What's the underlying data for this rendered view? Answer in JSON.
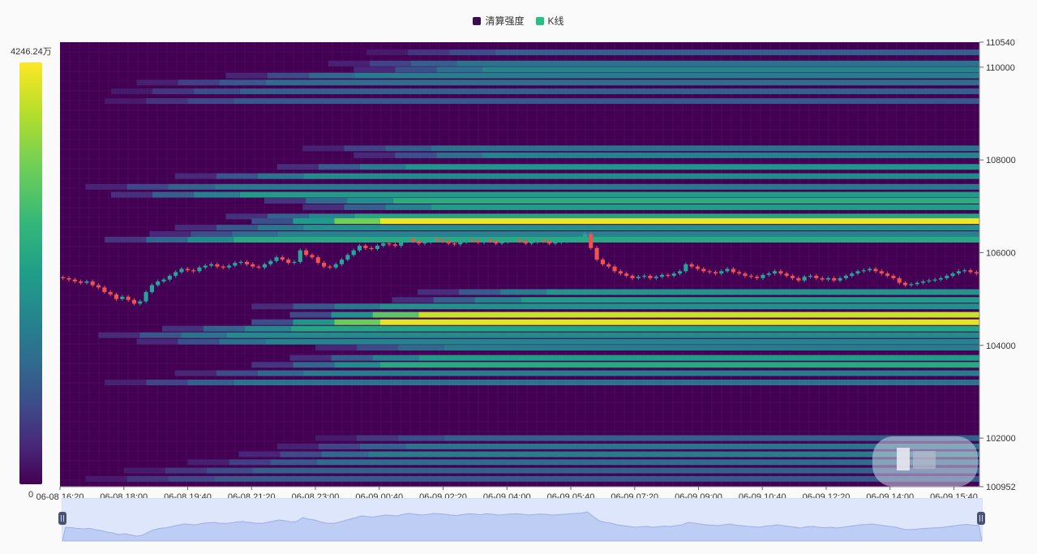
{
  "legend": [
    {
      "label": "清算强度",
      "color": "#3b0f4f"
    },
    {
      "label": "K线",
      "color": "#26c281"
    }
  ],
  "visual_map": {
    "max_label": "4246.24万",
    "min_label": "0"
  },
  "colors": {
    "background": "#440154",
    "candle_up": "#26a69a",
    "candle_down": "#ef5350",
    "viridis": [
      "#440154",
      "#482878",
      "#3e4989",
      "#31688e",
      "#26828e",
      "#1f9e89",
      "#35b779",
      "#6ece58",
      "#b5de2b",
      "#fde725"
    ]
  },
  "chart_data": {
    "type": "heatmap",
    "title": "",
    "xlabel": "",
    "ylabel": "",
    "x_ticks": [
      "06-08 16:20",
      "06-08 18:00",
      "06-08 19:40",
      "06-08 21:20",
      "06-08 23:00",
      "06-09 00:40",
      "06-09 02:20",
      "06-09 04:00",
      "06-09 05:40",
      "06-09 07:20",
      "06-09 09:00",
      "06-09 10:40",
      "06-09 12:20",
      "06-09 14:00",
      "06-09 15:40"
    ],
    "x_range": [
      "06-08 16:20",
      "06-09 16:20"
    ],
    "y_ticks": [
      110540,
      110000,
      108000,
      106000,
      104000,
      102000,
      100952
    ],
    "ylim": [
      100952,
      110540
    ],
    "intensity_range": [
      0,
      4246.24
    ],
    "intensity_unit": "万",
    "liquidation_levels": [
      {
        "price": 110320,
        "start": "06-09 00:20",
        "intensity": 0.3
      },
      {
        "price": 110080,
        "start": "06-08 23:20",
        "intensity": 0.38
      },
      {
        "price": 109950,
        "start": "06-09 00:00",
        "intensity": 0.45
      },
      {
        "price": 109820,
        "start": "06-08 20:40",
        "intensity": 0.42
      },
      {
        "price": 109670,
        "start": "06-08 18:20",
        "intensity": 0.35
      },
      {
        "price": 109480,
        "start": "06-08 17:40",
        "intensity": 0.3
      },
      {
        "price": 109270,
        "start": "06-08 17:30",
        "intensity": 0.28
      },
      {
        "price": 108250,
        "start": "06-08 22:40",
        "intensity": 0.38
      },
      {
        "price": 108100,
        "start": "06-09 00:00",
        "intensity": 0.45
      },
      {
        "price": 107850,
        "start": "06-08 22:00",
        "intensity": 0.52
      },
      {
        "price": 107650,
        "start": "06-08 19:20",
        "intensity": 0.48
      },
      {
        "price": 107420,
        "start": "06-08 17:00",
        "intensity": 0.4
      },
      {
        "price": 107250,
        "start": "06-08 17:40",
        "intensity": 0.55
      },
      {
        "price": 107120,
        "start": "06-08 21:40",
        "intensity": 0.62
      },
      {
        "price": 106980,
        "start": "06-08 22:40",
        "intensity": 0.55
      },
      {
        "price": 106780,
        "start": "06-08 20:40",
        "intensity": 0.58
      },
      {
        "price": 106680,
        "start": "06-08 21:20",
        "intensity": 0.98
      },
      {
        "price": 106540,
        "start": "06-08 19:20",
        "intensity": 0.5
      },
      {
        "price": 106400,
        "start": "06-08 18:40",
        "intensity": 0.45
      },
      {
        "price": 106280,
        "start": "06-08 17:30",
        "intensity": 0.6
      },
      {
        "price": 105150,
        "start": "06-09 01:40",
        "intensity": 0.52
      },
      {
        "price": 104980,
        "start": "06-09 01:00",
        "intensity": 0.55
      },
      {
        "price": 104840,
        "start": "06-08 21:20",
        "intensity": 0.5
      },
      {
        "price": 104660,
        "start": "06-08 22:20",
        "intensity": 0.92
      },
      {
        "price": 104500,
        "start": "06-08 21:20",
        "intensity": 0.96
      },
      {
        "price": 104360,
        "start": "06-08 19:00",
        "intensity": 0.58
      },
      {
        "price": 104220,
        "start": "06-08 17:20",
        "intensity": 0.48
      },
      {
        "price": 104080,
        "start": "06-08 18:20",
        "intensity": 0.45
      },
      {
        "price": 103950,
        "start": "06-08 23:00",
        "intensity": 0.42
      },
      {
        "price": 103730,
        "start": "06-08 22:20",
        "intensity": 0.55
      },
      {
        "price": 103580,
        "start": "06-08 21:20",
        "intensity": 0.6
      },
      {
        "price": 103400,
        "start": "06-08 19:20",
        "intensity": 0.42
      },
      {
        "price": 103200,
        "start": "06-08 17:30",
        "intensity": 0.38
      },
      {
        "price": 102000,
        "start": "06-08 23:00",
        "intensity": 0.3
      },
      {
        "price": 101820,
        "start": "06-08 22:00",
        "intensity": 0.38
      },
      {
        "price": 101650,
        "start": "06-08 21:00",
        "intensity": 0.42
      },
      {
        "price": 101480,
        "start": "06-08 19:40",
        "intensity": 0.35
      },
      {
        "price": 101300,
        "start": "06-08 18:00",
        "intensity": 0.3
      },
      {
        "price": 101120,
        "start": "06-08 17:00",
        "intensity": 0.28
      }
    ],
    "candlestick_close": [
      105450,
      105420,
      105380,
      105350,
      105380,
      105300,
      105250,
      105150,
      105100,
      105000,
      105050,
      104980,
      104900,
      104950,
      105150,
      105300,
      105380,
      105420,
      105500,
      105580,
      105650,
      105620,
      105600,
      105680,
      105720,
      105750,
      105700,
      105680,
      105720,
      105780,
      105800,
      105750,
      105700,
      105680,
      105750,
      105820,
      105900,
      105850,
      105780,
      105800,
      106050,
      105950,
      105900,
      105780,
      105700,
      105680,
      105750,
      105850,
      105950,
      106050,
      106150,
      106100,
      106080,
      106150,
      106200,
      106180,
      106150,
      106250,
      106300,
      106250,
      106200,
      106230,
      106300,
      106280,
      106250,
      106200,
      106180,
      106230,
      106280,
      106260,
      106220,
      106280,
      106250,
      106200,
      106230,
      106260,
      106280,
      106250,
      106200,
      106230,
      106260,
      106250,
      106200,
      106220,
      106250,
      106280,
      106300,
      106320,
      106400,
      106100,
      105850,
      105750,
      105700,
      105600,
      105550,
      105500,
      105450,
      105480,
      105500,
      105450,
      105480,
      105520,
      105500,
      105550,
      105600,
      105750,
      105700,
      105650,
      105600,
      105580,
      105550,
      105600,
      105650,
      105580,
      105550,
      105500,
      105480,
      105450,
      105520,
      105550,
      105600,
      105550,
      105500,
      105450,
      105400,
      105480,
      105500,
      105450,
      105420,
      105450,
      105400,
      105450,
      105500,
      105550,
      105600,
      105620,
      105650,
      105600,
      105550,
      105500,
      105450,
      105350,
      105300,
      105320,
      105350,
      105380,
      105400,
      105420,
      105450,
      105500,
      105550,
      105600,
      105620,
      105580,
      105550
    ]
  }
}
